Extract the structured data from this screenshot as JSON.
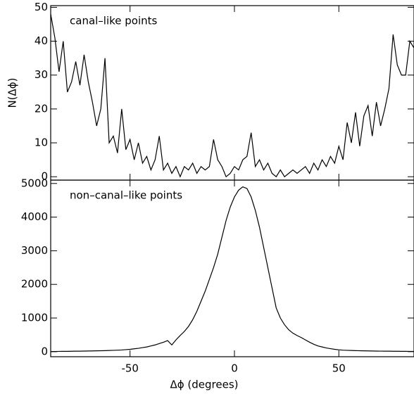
{
  "chart_data": [
    {
      "type": "line",
      "annotation": "canal–like points",
      "ylabel": "N(Δϕ)",
      "xlim": [
        -88,
        86
      ],
      "xticks": [
        -50,
        0,
        50
      ],
      "ylim": [
        -1,
        50.5
      ],
      "yticks": [
        0,
        10,
        20,
        30,
        40,
        50
      ],
      "x": [
        -88,
        -86,
        -84,
        -82,
        -80,
        -78,
        -76,
        -74,
        -72,
        -70,
        -68,
        -66,
        -64,
        -62,
        -60,
        -58,
        -56,
        -54,
        -52,
        -50,
        -48,
        -46,
        -44,
        -42,
        -40,
        -38,
        -36,
        -34,
        -32,
        -30,
        -28,
        -26,
        -24,
        -22,
        -20,
        -18,
        -16,
        -14,
        -12,
        -10,
        -8,
        -6,
        -4,
        -2,
        0,
        2,
        4,
        6,
        8,
        10,
        12,
        14,
        16,
        18,
        20,
        22,
        24,
        26,
        28,
        30,
        32,
        34,
        36,
        38,
        40,
        42,
        44,
        46,
        48,
        50,
        52,
        54,
        56,
        58,
        60,
        62,
        64,
        66,
        68,
        70,
        72,
        74,
        76,
        78,
        80,
        82,
        84,
        86
      ],
      "series": [
        {
          "color": "#000000",
          "values": [
            48,
            41,
            31,
            40,
            25,
            28,
            34,
            27,
            36,
            28,
            22,
            15,
            20,
            35,
            10,
            12,
            7,
            20,
            8,
            11,
            5,
            10,
            4,
            6,
            2,
            5,
            12,
            2,
            4,
            1,
            3,
            0,
            3,
            2,
            4,
            1,
            3,
            2,
            3,
            11,
            5,
            3,
            0,
            1,
            3,
            2,
            5,
            6,
            13,
            3,
            5,
            2,
            4,
            1,
            0,
            2,
            0,
            1,
            2,
            1,
            2,
            3,
            1,
            4,
            2,
            5,
            3,
            6,
            4,
            9,
            5,
            16,
            10,
            19,
            9,
            18,
            21,
            12,
            22,
            15,
            20,
            26,
            42,
            33,
            30,
            30,
            40,
            38
          ]
        }
      ]
    },
    {
      "type": "line",
      "annotation": "non–canal–like points",
      "xlabel": "Δϕ (degrees)",
      "xlim": [
        -88,
        86
      ],
      "xticks": [
        -50,
        0,
        50
      ],
      "ylim": [
        -150,
        5100
      ],
      "yticks": [
        0,
        1000,
        2000,
        3000,
        4000,
        5000
      ],
      "x": [
        -88,
        -86,
        -84,
        -82,
        -80,
        -78,
        -76,
        -74,
        -72,
        -70,
        -68,
        -66,
        -64,
        -62,
        -60,
        -58,
        -56,
        -54,
        -52,
        -50,
        -48,
        -46,
        -44,
        -42,
        -40,
        -38,
        -36,
        -34,
        -32,
        -30,
        -28,
        -26,
        -24,
        -22,
        -20,
        -18,
        -16,
        -14,
        -12,
        -10,
        -8,
        -6,
        -4,
        -2,
        0,
        2,
        4,
        6,
        8,
        10,
        12,
        14,
        16,
        18,
        20,
        22,
        24,
        26,
        28,
        30,
        32,
        34,
        36,
        38,
        40,
        42,
        44,
        46,
        48,
        50,
        52,
        54,
        56,
        58,
        60,
        62,
        64,
        66,
        68,
        70,
        72,
        74,
        76,
        78,
        80,
        82,
        84,
        86
      ],
      "series": [
        {
          "color": "#000000",
          "values": [
            5,
            5,
            8,
            10,
            10,
            12,
            15,
            15,
            18,
            20,
            22,
            25,
            28,
            30,
            35,
            40,
            45,
            50,
            60,
            70,
            85,
            100,
            120,
            140,
            170,
            200,
            240,
            280,
            330,
            200,
            350,
            480,
            600,
            750,
            950,
            1200,
            1500,
            1800,
            2150,
            2500,
            2900,
            3400,
            3900,
            4300,
            4600,
            4800,
            4900,
            4850,
            4600,
            4200,
            3700,
            3100,
            2500,
            1900,
            1300,
            1000,
            800,
            650,
            550,
            480,
            420,
            350,
            280,
            220,
            170,
            140,
            110,
            90,
            70,
            55,
            45,
            40,
            35,
            30,
            28,
            25,
            22,
            20,
            18,
            16,
            15,
            14,
            12,
            12,
            10,
            10,
            8,
            8
          ]
        }
      ]
    }
  ]
}
